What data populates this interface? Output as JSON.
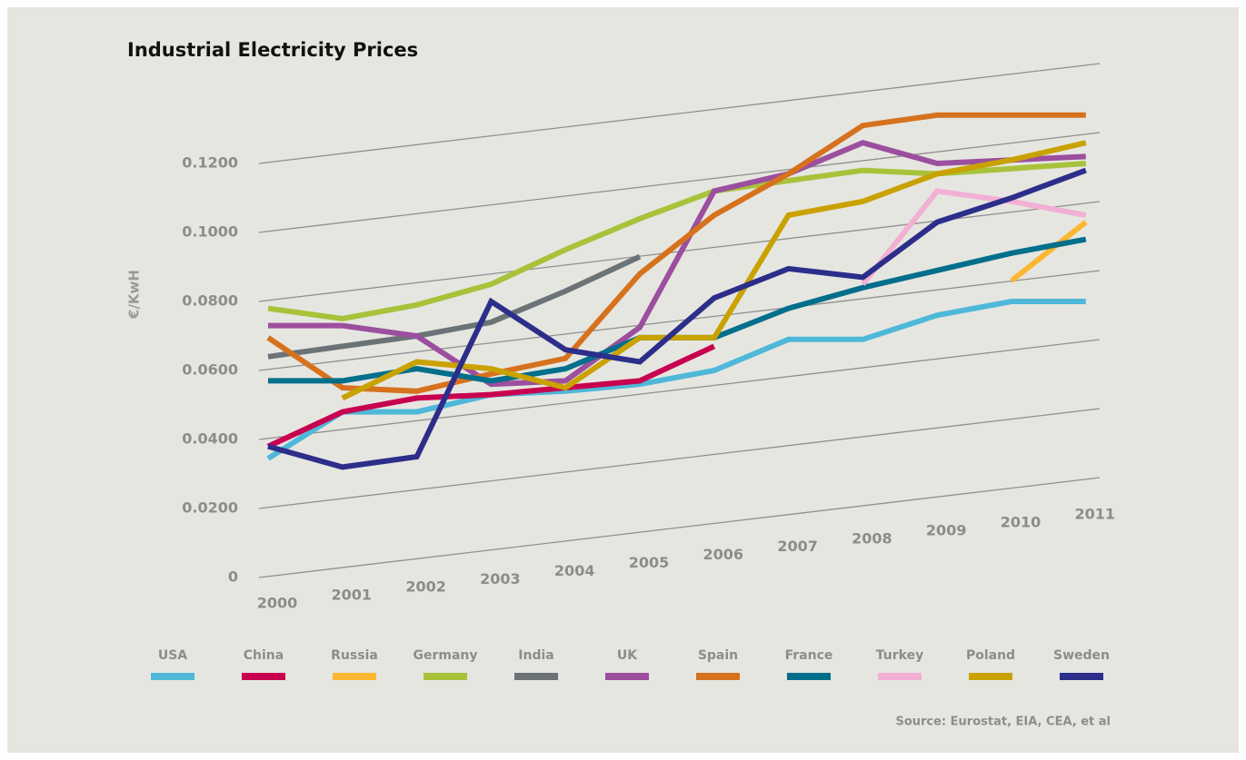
{
  "chart_data": {
    "type": "line",
    "title": "Industrial Electricity Prices",
    "y_label": "€/KwH",
    "source": "Source: Eurostat, EIA, CEA, et al",
    "categories": [
      "2000",
      "2001",
      "2002",
      "2003",
      "2004",
      "2005",
      "2006",
      "2007",
      "2008",
      "2009",
      "2010",
      "2011"
    ],
    "ylim": [
      0,
      0.14
    ],
    "yticks": [
      0,
      {
        "value": 0.02,
        "label": "0.0200"
      },
      {
        "value": 0.04,
        "label": "0.0400"
      },
      {
        "value": 0.06,
        "label": "0.0600"
      },
      {
        "value": 0.08,
        "label": "0.0800"
      },
      {
        "value": 0.1,
        "label": "0.1000"
      },
      {
        "value": 0.12,
        "label": "0.1200"
      }
    ],
    "grid": true,
    "series": [
      {
        "name": "USA",
        "color": "#4fb8d8",
        "values": [
          0.0345,
          0.048,
          0.048,
          0.053,
          0.054,
          0.056,
          0.06,
          0.069,
          0.069,
          0.076,
          0.08,
          0.08
        ]
      },
      {
        "name": "China",
        "color": "#c8004f",
        "values": [
          0.038,
          0.048,
          0.052,
          0.053,
          0.055,
          0.057,
          0.067,
          null,
          null,
          null,
          null,
          null
        ]
      },
      {
        "name": "Russia",
        "color": "#fbb731",
        "values": [
          null,
          null,
          null,
          null,
          null,
          null,
          null,
          null,
          null,
          null,
          0.086,
          0.103
        ]
      },
      {
        "name": "Germany",
        "color": "#a8c23a",
        "values": [
          0.078,
          0.075,
          0.079,
          0.085,
          0.095,
          0.104,
          0.112,
          0.115,
          0.118,
          0.117,
          0.1185,
          0.12
        ]
      },
      {
        "name": "India",
        "color": "#6b7377",
        "values": [
          0.064,
          0.067,
          0.07,
          0.074,
          0.083,
          0.093,
          null,
          null,
          null,
          null,
          null,
          null
        ]
      },
      {
        "name": "UK",
        "color": "#9b4f9e",
        "values": [
          0.073,
          0.073,
          0.07,
          0.056,
          0.057,
          0.0725,
          0.112,
          0.117,
          0.126,
          0.12,
          0.121,
          0.122
        ]
      },
      {
        "name": "Spain",
        "color": "#d6721e",
        "values": [
          0.0695,
          0.055,
          0.054,
          0.059,
          0.0635,
          0.088,
          0.105,
          0.117,
          0.131,
          0.134,
          0.134,
          0.134
        ]
      },
      {
        "name": "France",
        "color": "#006f8c",
        "values": [
          0.057,
          0.057,
          0.0605,
          0.057,
          0.0605,
          0.0695,
          0.0695,
          0.078,
          0.084,
          0.089,
          0.094,
          0.098
        ]
      },
      {
        "name": "Turkey",
        "color": "#f1b0d4",
        "values": [
          null,
          null,
          null,
          null,
          null,
          null,
          null,
          null,
          0.085,
          0.112,
          0.109,
          0.105
        ]
      },
      {
        "name": "Poland",
        "color": "#c9a200",
        "values": [
          null,
          0.052,
          0.0625,
          0.0605,
          0.055,
          0.0695,
          0.0695,
          0.105,
          0.109,
          0.117,
          0.121,
          0.126
        ]
      },
      {
        "name": "Sweden",
        "color": "#2c2e8a",
        "values": [
          0.038,
          0.032,
          0.035,
          0.08,
          0.066,
          0.0625,
          0.081,
          0.0895,
          0.087,
          0.103,
          0.11,
          0.118
        ]
      }
    ]
  }
}
